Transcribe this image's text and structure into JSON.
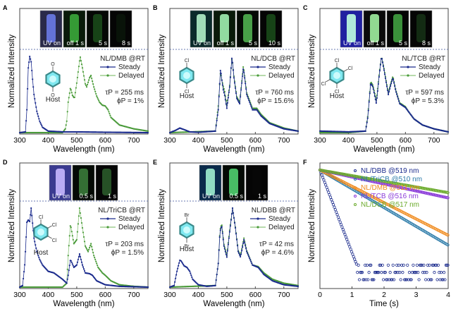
{
  "figure": {
    "colors": {
      "steady": "#1a2a8c",
      "delayed": "#4a9a3a",
      "delayed_light": "#8cc47a",
      "divider": "#6a7ab0",
      "host_ring": "#3a8a8a",
      "host_fill": "#7fe8f0"
    }
  },
  "chart_data": [
    {
      "id": "A",
      "type": "line",
      "panel_label": "A",
      "xlabel": "Wavelength (nm)",
      "ylabel": "Normalized Intensity",
      "xlim": [
        300,
        750
      ],
      "xticks": [
        300,
        400,
        500,
        600,
        700
      ],
      "legend_title": "NL/DMB @RT",
      "legend": [
        "Steady",
        "Delayed"
      ],
      "host_label": "Host",
      "host_substituents": [
        "O",
        "O"
      ],
      "tau": "τP = 255 ms",
      "phi": "ϕP = 1%",
      "photos": [
        "UV on",
        "off 1 s",
        "5 s",
        "8 s"
      ],
      "series": [
        {
          "name": "Steady",
          "x": [
            300,
            320,
            325,
            330,
            335,
            340,
            345,
            350,
            360,
            370,
            380,
            400,
            450,
            500,
            600,
            750
          ],
          "y": [
            0,
            0.01,
            0.3,
            0.85,
            1.0,
            0.93,
            0.7,
            0.5,
            0.28,
            0.15,
            0.07,
            0.02,
            0.01,
            0.01,
            0.005,
            0
          ]
        },
        {
          "name": "Delayed",
          "x": [
            300,
            450,
            460,
            465,
            470,
            478,
            485,
            492,
            500,
            512,
            520,
            530,
            535,
            545,
            550,
            560,
            570,
            580,
            590,
            600,
            610,
            620,
            650,
            700,
            750
          ],
          "y": [
            0,
            0,
            0.05,
            0.15,
            0.4,
            0.59,
            0.49,
            0.45,
            0.65,
            1.0,
            0.85,
            0.64,
            0.6,
            0.72,
            0.75,
            0.6,
            0.48,
            0.4,
            0.36,
            0.35,
            0.3,
            0.2,
            0.1,
            0.05,
            0.02
          ]
        }
      ]
    },
    {
      "id": "B",
      "type": "line",
      "panel_label": "B",
      "xlabel": "Wavelength (nm)",
      "ylabel": "Normalized Intensity",
      "xlim": [
        300,
        750
      ],
      "xticks": [
        300,
        400,
        500,
        600,
        700
      ],
      "legend_title": "NL/DCB @RT",
      "legend": [
        "Steady",
        "Delayed"
      ],
      "host_label": "Host",
      "host_substituents": [
        "Cl",
        "Cl"
      ],
      "tau": "τP = 760 ms",
      "phi": "ϕP = 15.6%",
      "photos": [
        "UV on",
        "off 1 s",
        "5 s",
        "10 s"
      ],
      "series": [
        {
          "name": "Steady",
          "x": [
            300,
            320,
            335,
            350,
            370,
            400,
            460,
            470,
            478,
            482,
            488,
            492,
            500,
            510,
            518,
            525,
            535,
            545,
            558,
            570,
            590,
            605,
            620,
            650,
            700,
            750
          ],
          "y": [
            0,
            0.03,
            0.06,
            0.04,
            0.01,
            0.005,
            0.02,
            0.3,
            0.85,
            0.7,
            0.55,
            0.5,
            0.32,
            0.6,
            1.0,
            0.72,
            0.45,
            0.38,
            0.85,
            0.5,
            0.3,
            0.3,
            0.22,
            0.12,
            0.05,
            0.02
          ]
        },
        {
          "name": "Delayed",
          "x": [
            300,
            460,
            470,
            478,
            482,
            488,
            492,
            500,
            510,
            518,
            525,
            535,
            545,
            558,
            570,
            590,
            605,
            620,
            650,
            700,
            750
          ],
          "y": [
            0,
            0.02,
            0.35,
            0.8,
            0.7,
            0.6,
            0.55,
            0.36,
            0.62,
            0.98,
            0.74,
            0.47,
            0.4,
            0.88,
            0.52,
            0.32,
            0.32,
            0.24,
            0.13,
            0.06,
            0.02
          ]
        }
      ]
    },
    {
      "id": "C",
      "type": "line",
      "panel_label": "C",
      "xlabel": "Wavelength (nm)",
      "ylabel": "Normalized Intensity",
      "xlim": [
        300,
        750
      ],
      "xticks": [
        300,
        400,
        500,
        600,
        700
      ],
      "legend_title": "NL/TCB @RT",
      "legend": [
        "Steady",
        "Delayed"
      ],
      "host_label": "Host",
      "host_substituents": [
        "Cl",
        "Cl",
        "Cl",
        "Cl"
      ],
      "tau": "τP = 597 ms",
      "phi": "ϕP = 5.3%",
      "photos": [
        "UV on",
        "off 1 s",
        "5 s",
        "8 s"
      ],
      "series": [
        {
          "name": "Steady",
          "x": [
            300,
            400,
            460,
            468,
            478,
            486,
            498,
            508,
            516,
            525,
            540,
            548,
            556,
            566,
            580,
            600,
            610,
            630,
            660,
            700,
            750
          ],
          "y": [
            0.02,
            0.01,
            0.02,
            0.2,
            0.65,
            0.6,
            0.38,
            0.75,
            1.0,
            0.82,
            0.5,
            0.62,
            0.72,
            0.55,
            0.38,
            0.33,
            0.28,
            0.18,
            0.1,
            0.05,
            0.01
          ]
        },
        {
          "name": "Delayed",
          "x": [
            300,
            400,
            460,
            468,
            478,
            486,
            498,
            508,
            516,
            525,
            540,
            548,
            556,
            566,
            580,
            600,
            610,
            630,
            660,
            700,
            750
          ],
          "y": [
            0,
            0,
            0.02,
            0.22,
            0.67,
            0.62,
            0.42,
            0.77,
            1.0,
            0.84,
            0.52,
            0.64,
            0.74,
            0.56,
            0.39,
            0.34,
            0.28,
            0.18,
            0.1,
            0.05,
            0.01
          ]
        }
      ]
    },
    {
      "id": "D",
      "type": "line",
      "panel_label": "D",
      "xlabel": "Wavelength (nm)",
      "ylabel": "Normalized Intensity",
      "xlim": [
        300,
        750
      ],
      "xticks": [
        300,
        400,
        500,
        600,
        700
      ],
      "legend_title": "NL/TriCB @RT",
      "legend": [
        "Steady",
        "Delayed"
      ],
      "host_label": "Host",
      "host_substituents": [
        "Cl",
        "Cl",
        "Cl"
      ],
      "tau": "τP = 203 ms",
      "phi": "ϕP = 1.5%",
      "photos": [
        "UV on",
        "0.5 s",
        "1 s"
      ],
      "series": [
        {
          "name": "Steady",
          "x": [
            300,
            310,
            318,
            325,
            330,
            335,
            340,
            350,
            360,
            370,
            380,
            400,
            420,
            450,
            465,
            470,
            478,
            490,
            500,
            510,
            520,
            530,
            545,
            555,
            570,
            600,
            650,
            750
          ],
          "y": [
            0,
            0.02,
            0.3,
            0.82,
            0.85,
            0.83,
            1.0,
            0.62,
            0.45,
            0.35,
            0.28,
            0.2,
            0.18,
            0.1,
            0.05,
            0.15,
            0.35,
            0.25,
            0.28,
            0.42,
            0.28,
            0.18,
            0.17,
            0.15,
            0.08,
            0.03,
            0.01,
            0
          ]
        },
        {
          "name": "Delayed",
          "x": [
            300,
            450,
            465,
            470,
            478,
            485,
            490,
            500,
            510,
            520,
            530,
            540,
            550,
            560,
            575,
            590,
            600,
            620,
            650,
            700,
            750
          ],
          "y": [
            0,
            0,
            0.05,
            0.4,
            0.8,
            0.65,
            0.55,
            0.6,
            1.0,
            0.75,
            0.52,
            0.45,
            0.55,
            0.4,
            0.25,
            0.18,
            0.15,
            0.08,
            0.03,
            0.01,
            0
          ]
        }
      ]
    },
    {
      "id": "E",
      "type": "line",
      "panel_label": "E",
      "xlabel": "Wavelength (nm)",
      "ylabel": "Normalized Intensity",
      "xlim": [
        300,
        750
      ],
      "xticks": [
        300,
        400,
        500,
        600,
        700
      ],
      "legend_title": "NL/DBB @RT",
      "legend": [
        "Steady",
        "Delayed"
      ],
      "host_label": "Host",
      "host_substituents": [
        "Br",
        "Br"
      ],
      "tau": "τP = 42 ms",
      "phi": "ϕP = 4.6%",
      "photos": [
        "UV on",
        "0.5 s",
        "1 s"
      ],
      "series": [
        {
          "name": "Steady",
          "x": [
            300,
            315,
            325,
            335,
            340,
            350,
            360,
            370,
            380,
            400,
            430,
            460,
            470,
            476,
            482,
            490,
            500,
            510,
            520,
            530,
            540,
            548,
            560,
            570,
            590,
            610,
            630,
            660,
            700,
            750
          ],
          "y": [
            0,
            0.02,
            0.2,
            0.34,
            0.33,
            0.27,
            0.25,
            0.2,
            0.1,
            0.03,
            0.01,
            0.02,
            0.3,
            0.7,
            0.78,
            0.52,
            0.38,
            0.7,
            1.0,
            0.75,
            0.45,
            0.38,
            0.6,
            0.45,
            0.28,
            0.25,
            0.16,
            0.08,
            0.03,
            0.01
          ]
        },
        {
          "name": "Delayed",
          "x": [
            300,
            460,
            470,
            476,
            482,
            490,
            500,
            510,
            520,
            530,
            540,
            548,
            560,
            570,
            590,
            610,
            630,
            660,
            700,
            750
          ],
          "y": [
            0,
            0.02,
            0.3,
            0.72,
            0.8,
            0.54,
            0.4,
            0.72,
            1.0,
            0.76,
            0.46,
            0.4,
            0.62,
            0.46,
            0.28,
            0.26,
            0.18,
            0.1,
            0.05,
            0.02
          ]
        }
      ]
    },
    {
      "id": "F",
      "type": "scatter",
      "panel_label": "F",
      "xlabel": "Time (s)",
      "ylabel": "Normalized Intensity",
      "xlim": [
        0,
        4
      ],
      "xticks": [
        0,
        1,
        2,
        3,
        4
      ],
      "yscale": "log",
      "legend": [
        {
          "name": "NL/DBB @519 nm",
          "color": "#1a2a8c",
          "tau_s": 0.042
        },
        {
          "name": "NL/TriCB @510 nm",
          "color": "#2a7aa8",
          "tau_s": 0.203
        },
        {
          "name": "NL/DMB @511 nm",
          "color": "#f08a1c",
          "tau_s": 0.255
        },
        {
          "name": "NL/TCB @516 nm",
          "color": "#8a3ad8",
          "tau_s": 0.597
        },
        {
          "name": "NL/DCB @517 nm",
          "color": "#6aaa2a",
          "tau_s": 0.76
        }
      ]
    }
  ]
}
